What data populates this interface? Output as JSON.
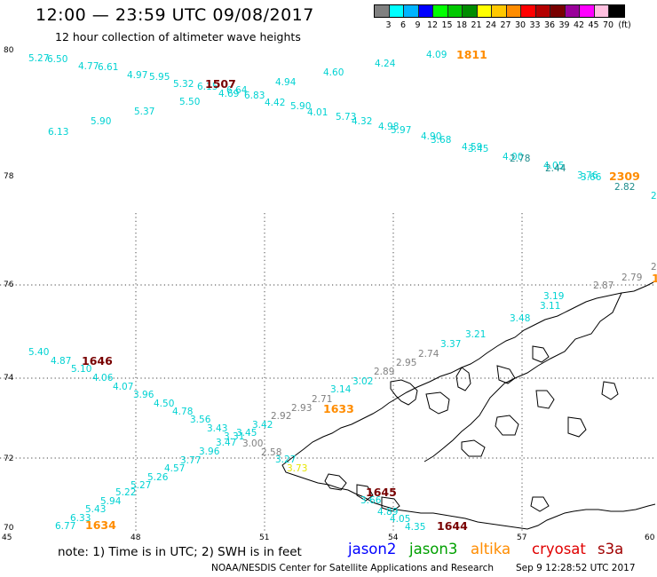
{
  "header": {
    "title": "12:00 — 23:59 UTC 09/08/2017",
    "subtitle": "12 hour collection of altimeter wave heights"
  },
  "legend": {
    "colors": [
      "#808080",
      "#00ffff",
      "#00b4ff",
      "#0000ff",
      "#00ff00",
      "#00c800",
      "#008c00",
      "#ffff00",
      "#ffc800",
      "#ff8c00",
      "#ff0000",
      "#b40000",
      "#780000",
      "#9a009a",
      "#ff00ff",
      "#ffc0e0",
      "#000000"
    ],
    "labels": [
      "3",
      "6",
      "9",
      "12",
      "15",
      "18",
      "21",
      "24",
      "27",
      "30",
      "33",
      "36",
      "39",
      "42",
      "45",
      "70",
      "(ft)"
    ]
  },
  "axes": {
    "lat_labels": [
      "80",
      "78",
      "76",
      "74",
      "72",
      "70"
    ],
    "lon_labels": [
      "45",
      "48",
      "51",
      "54",
      "57",
      "60"
    ]
  },
  "tracks": {
    "cyan": [
      "5.27",
      "6.50",
      "4.77",
      "6.61",
      "4.97",
      "5.95",
      "5.32",
      "6.15",
      "4.69",
      "6.64",
      "6.83",
      "4.42",
      "4.94",
      "5.90",
      "4.01",
      "4.60",
      "5.73",
      "4.32",
      "4.24",
      "4.98",
      "5.97",
      "4.09",
      "4.90",
      "3.68",
      "4.59",
      "3.45",
      "4.00",
      "2.78",
      "4.05",
      "2.44",
      "3.76",
      "3.66",
      "2.82",
      "2",
      "5.50",
      "5.37",
      "5.90",
      "6.13",
      "5.40",
      "4.87",
      "5.10",
      "4.06",
      "4.07",
      "3.96",
      "4.50",
      "4.78",
      "3.56",
      "3.43",
      "3.31",
      "3.45",
      "3.47",
      "3.42",
      "3.96",
      "3.77",
      "4.57",
      "5.26",
      "5.22",
      "5.27",
      "5.94",
      "5.43",
      "6.33",
      "6.77",
      "3.14",
      "3.02",
      "3.37",
      "3.21",
      "3.48",
      "3.11",
      "3.19",
      "3.10",
      "3.66",
      "4.89",
      "4.05",
      "4.35",
      "3.27"
    ],
    "gray": [
      "2.89",
      "2.95",
      "2.74",
      "2.71",
      "2.93",
      "2.92",
      "3.00",
      "2.58",
      "2.87",
      "2.79",
      "2"
    ],
    "yellow": [
      "3.73"
    ],
    "orange": [
      "1811",
      "2309",
      "1633",
      "1634",
      "1"
    ],
    "darkred": [
      "1507",
      "1646",
      "1645",
      "1644"
    ]
  },
  "notes": {
    "note": "note:  1) Time is in UTC;  2) SWH is in feet",
    "sat_jason2": "jason2",
    "sat_jason3": "jason3",
    "sat_altika": "altika",
    "sat_cryosat": "cryosat",
    "sat_s3a": "s3a",
    "color_jason2": "#0000ff",
    "color_jason3": "#00a000",
    "color_altika": "#ff8c00",
    "color_cryosat": "#e00000",
    "color_s3a": "#a00000"
  },
  "footer": {
    "credit": "NOAA/NESDIS Center for Satellite Applications and Research",
    "stamp": "Sep  9 12:28:52 UTC 2017"
  }
}
